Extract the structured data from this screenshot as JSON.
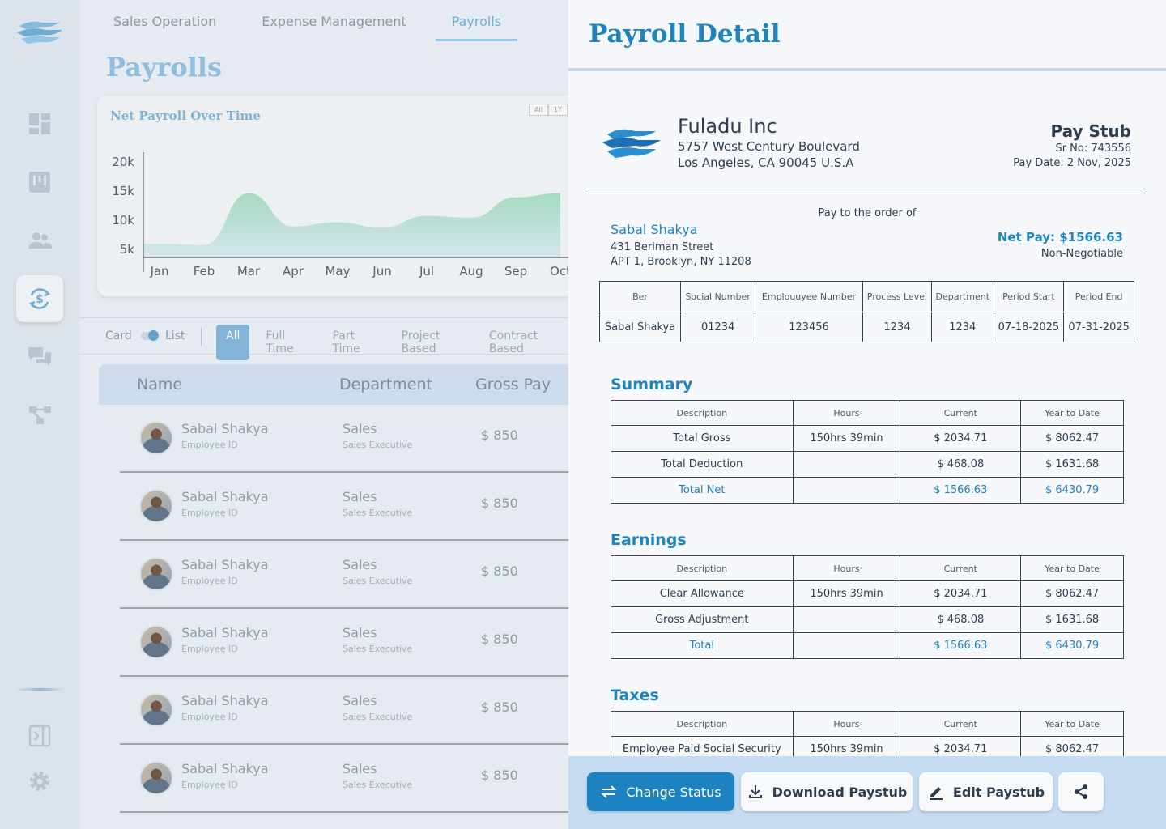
{
  "tabs": [
    {
      "label": "Sales Operation"
    },
    {
      "label": "Expense Management"
    },
    {
      "label": "Payrolls"
    }
  ],
  "page_title": "Payrolls",
  "chart": {
    "title": "Net Payroll Over Time",
    "range_buttons": [
      "All",
      "1Y"
    ]
  },
  "chart_data": {
    "type": "area",
    "title": "Net Payroll Over Time",
    "categories": [
      "Jan",
      "Feb",
      "Mar",
      "Apr",
      "May",
      "Jun",
      "Jul",
      "Aug",
      "Sep",
      "Oct"
    ],
    "series": [
      {
        "values": [
          5800,
          5600,
          14500,
          8800,
          9500,
          8600,
          10600,
          10300,
          13800,
          14500
        ]
      }
    ],
    "yticks": [
      "5k",
      "10k",
      "15k",
      "20k"
    ],
    "ylim": [
      3000,
      21000
    ],
    "grid": false,
    "colors": {
      "top": "#9ad8b8",
      "bottom": "#d3e4ee"
    }
  },
  "filters": {
    "card": "Card",
    "list": "List",
    "pills": [
      "All",
      "Full Time",
      "Part Time",
      "Project Based",
      "Contract Based"
    ]
  },
  "table_headers": [
    "Name",
    "Department",
    "Gross Pay"
  ],
  "rows": [
    {
      "name": "Sabal Shakya",
      "id": "Employee ID",
      "dept": "Sales",
      "role": "Sales Executive",
      "pay": "$ 850"
    },
    {
      "name": "Sabal Shakya",
      "id": "Employee ID",
      "dept": "Sales",
      "role": "Sales Executive",
      "pay": "$ 850"
    },
    {
      "name": "Sabal Shakya",
      "id": "Employee ID",
      "dept": "Sales",
      "role": "Sales Executive",
      "pay": "$ 850"
    },
    {
      "name": "Sabal Shakya",
      "id": "Employee ID",
      "dept": "Sales",
      "role": "Sales Executive",
      "pay": "$ 850"
    },
    {
      "name": "Sabal Shakya",
      "id": "Employee ID",
      "dept": "Sales",
      "role": "Sales Executive",
      "pay": "$ 850"
    },
    {
      "name": "Sabal Shakya",
      "id": "Employee ID",
      "dept": "Sales",
      "role": "Sales Executive",
      "pay": "$ 850"
    }
  ],
  "panel": {
    "title": "Payroll Detail",
    "company": {
      "name": "Fuladu Inc",
      "addr1": "5757 West Century Boulevard",
      "addr2": "Los Angeles, CA 90045 U.S.A"
    },
    "stub": {
      "title": "Pay Stub",
      "sr": "Sr No: 743556",
      "date": "Pay Date: 2 Nov, 2025"
    },
    "pay_to": "Pay to the order of",
    "employee": {
      "name": "Sabal Shakya",
      "addr1": "431 Beriman Street",
      "addr2": "APT 1, Brooklyn, NY 11208"
    },
    "net_pay": "Net Pay: $1566.63",
    "non_neg": "Non-Negotiable",
    "info_headers": [
      "Ber",
      "Social Number",
      "Emplouuyee Number",
      "Process Level",
      "Department",
      "Period Start",
      "Period End"
    ],
    "info_values": [
      "Sabal Shakya",
      "01234",
      "123456",
      "1234",
      "1234",
      "07-18-2025",
      "07-31-2025"
    ],
    "col_headers": [
      "Description",
      "Hours",
      "Current",
      "Year to Date"
    ],
    "summary": {
      "title": "Summary",
      "rows": [
        [
          "Total Gross",
          "150hrs 39min",
          "$ 2034.71",
          "$ 8062.47"
        ],
        [
          "Total Deduction",
          "",
          "$ 468.08",
          "$ 1631.68"
        ],
        [
          "Total Net",
          "",
          "$ 1566.63",
          "$ 6430.79"
        ]
      ]
    },
    "earnings": {
      "title": "Earnings",
      "rows": [
        [
          "Clear Allowance",
          "150hrs 39min",
          "$ 2034.71",
          "$ 8062.47"
        ],
        [
          "Gross Adjustment",
          "",
          "$ 468.08",
          "$ 1631.68"
        ],
        [
          "Total",
          "",
          "$ 1566.63",
          "$ 6430.79"
        ]
      ]
    },
    "taxes": {
      "title": "Taxes",
      "rows": [
        [
          "Employee Paid Social Security",
          "150hrs 39min",
          "$ 2034.71",
          "$ 8062.47"
        ]
      ]
    }
  },
  "buttons": {
    "change_status": "Change Status",
    "download": "Download Paystub",
    "edit": "Edit Paystub"
  },
  "icons": [
    "dashboard-icon",
    "board-icon",
    "users-icon",
    "payroll-icon",
    "chat-icon",
    "workflow-icon",
    "collapse-icon",
    "gear-icon",
    "share-icon",
    "swap-icon",
    "download-icon",
    "edit-icon"
  ]
}
